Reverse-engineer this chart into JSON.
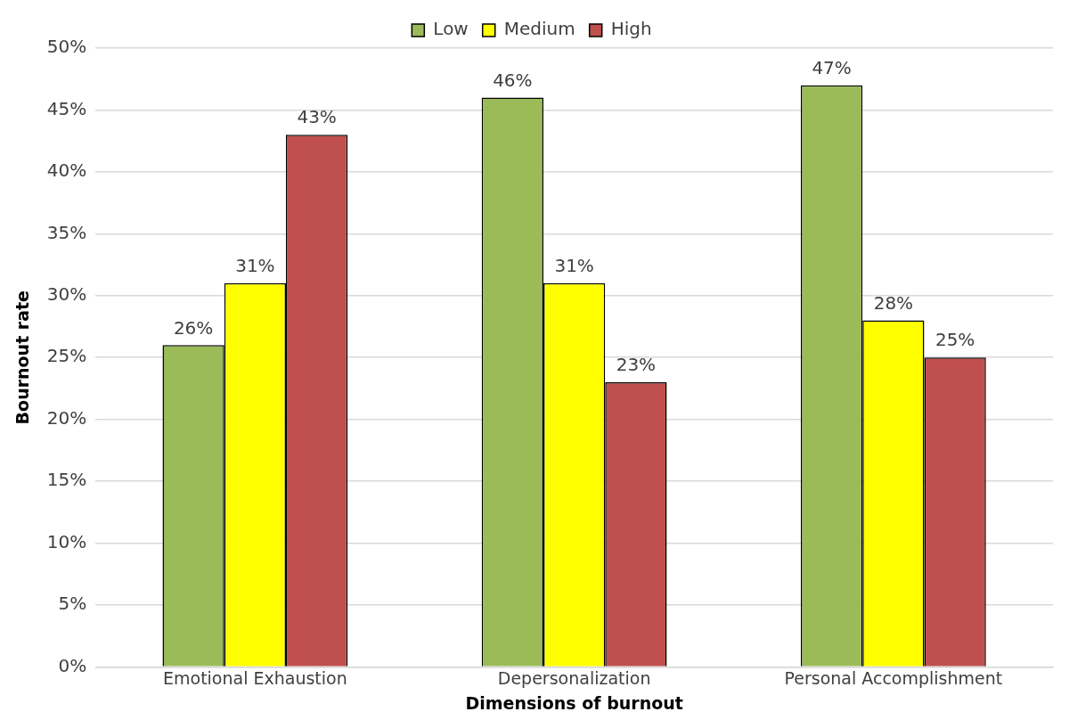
{
  "chart_data": {
    "type": "bar",
    "xlabel": "Dimensions of burnout",
    "ylabel": "Bournout rate",
    "categories": [
      "Emotional Exhaustion",
      "Depersonalization",
      "Personal Accomplishment"
    ],
    "series": [
      {
        "name": "Low",
        "color": "#9bbb59",
        "values": [
          26,
          46,
          47
        ],
        "value_labels": [
          "26%",
          "46%",
          "47%"
        ]
      },
      {
        "name": "Medium",
        "color": "#ffff00",
        "values": [
          31,
          31,
          28
        ],
        "value_labels": [
          "31%",
          "31%",
          "28%"
        ]
      },
      {
        "name": "High",
        "color": "#c0504d",
        "values": [
          43,
          23,
          25
        ],
        "value_labels": [
          "43%",
          "23%",
          "25%"
        ]
      }
    ],
    "ylim": [
      0,
      50
    ],
    "yticks": [
      {
        "value": 0,
        "label": "0%"
      },
      {
        "value": 5,
        "label": "5%"
      },
      {
        "value": 10,
        "label": "10%"
      },
      {
        "value": 15,
        "label": "15%"
      },
      {
        "value": 20,
        "label": "20%"
      },
      {
        "value": 25,
        "label": "25%"
      },
      {
        "value": 30,
        "label": "30%"
      },
      {
        "value": 35,
        "label": "35%"
      },
      {
        "value": 40,
        "label": "40%"
      },
      {
        "value": 45,
        "label": "45%"
      },
      {
        "value": 50,
        "label": "50%"
      }
    ],
    "grid": "y",
    "legend": "top"
  }
}
